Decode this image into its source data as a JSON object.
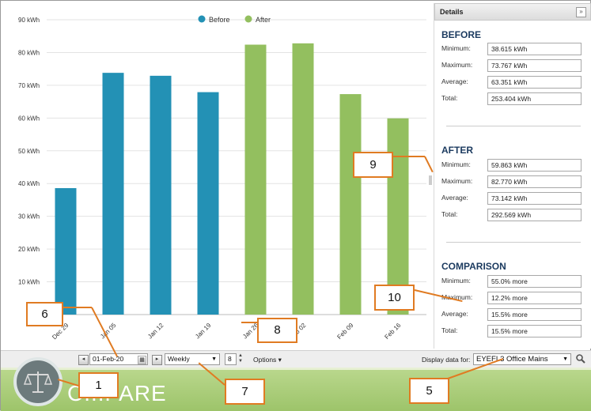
{
  "chart_data": {
    "type": "bar",
    "categories": [
      "Dec 29",
      "Jan 05",
      "Jan 12",
      "Jan 19",
      "Jan 26",
      "Feb 02",
      "Feb 09",
      "Feb 16"
    ],
    "series": [
      {
        "name": "Before",
        "color": "#2391b5",
        "values": [
          38.6,
          73.8,
          72.9,
          67.9,
          null,
          null,
          null,
          null
        ]
      },
      {
        "name": "After",
        "color": "#93bf5f",
        "values": [
          null,
          null,
          null,
          null,
          82.4,
          82.8,
          67.3,
          59.9
        ]
      }
    ],
    "y_ticks": [
      "10 kWh",
      "20 kWh",
      "30 kWh",
      "40 kWh",
      "50 kWh",
      "60 kWh",
      "70 kWh",
      "80 kWh",
      "90 kWh"
    ],
    "ylim": [
      0,
      90
    ],
    "legend_position": "top-center",
    "grid": true
  },
  "details": {
    "header": "Details",
    "collapse_glyph": "»",
    "before": {
      "title": "BEFORE",
      "rows": [
        {
          "label": "Minimum:",
          "value": "38.615 kWh"
        },
        {
          "label": "Maximum:",
          "value": "73.767 kWh"
        },
        {
          "label": "Average:",
          "value": "63.351 kWh"
        },
        {
          "label": "Total:",
          "value": "253.404 kWh"
        }
      ]
    },
    "after": {
      "title": "AFTER",
      "rows": [
        {
          "label": "Minimum:",
          "value": "59.863 kWh"
        },
        {
          "label": "Maximum:",
          "value": "82.770 kWh"
        },
        {
          "label": "Average:",
          "value": "73.142 kWh"
        },
        {
          "label": "Total:",
          "value": "292.569 kWh"
        }
      ]
    },
    "comparison": {
      "title": "COMPARISON",
      "rows": [
        {
          "label": "Minimum:",
          "value": "55.0% more"
        },
        {
          "label": "Maximum:",
          "value": "12.2% more"
        },
        {
          "label": "Average:",
          "value": "15.5% more"
        },
        {
          "label": "Total:",
          "value": "15.5% more"
        }
      ]
    }
  },
  "toolbar": {
    "date_value": "01-Feb-20",
    "period_value": "Weekly",
    "count_value": "8",
    "options_label": "Options ▾",
    "display_label": "Display data for:",
    "meter_value": "EYEFI.3 Office Mains"
  },
  "banner": {
    "title_visible": "C...PARE"
  },
  "callouts": [
    "1",
    "5",
    "6",
    "7",
    "8",
    "9",
    "10"
  ]
}
